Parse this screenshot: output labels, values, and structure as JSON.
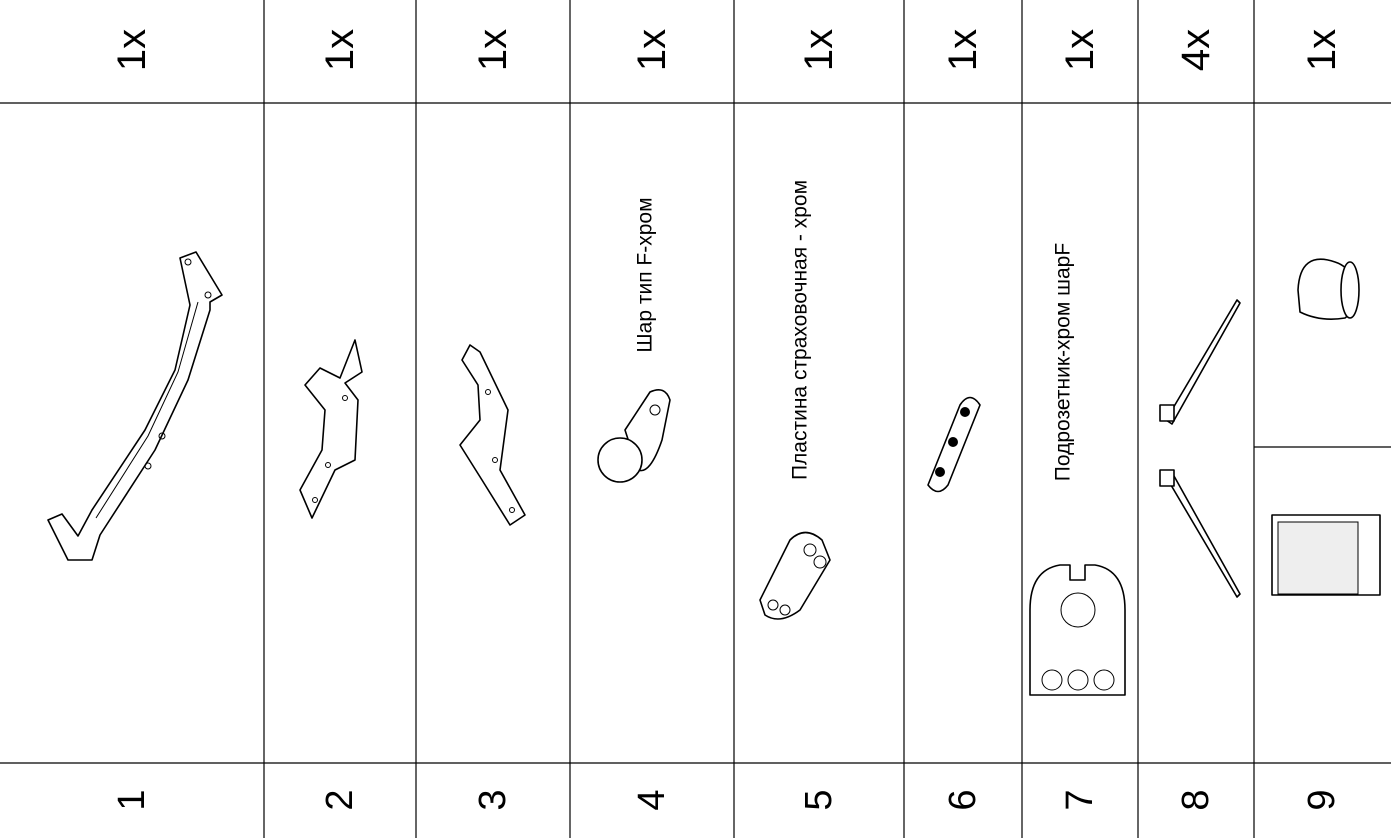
{
  "table": {
    "columns": [
      {
        "quantity": "1x",
        "number": "1"
      },
      {
        "quantity": "1x",
        "number": "2"
      },
      {
        "quantity": "1x",
        "number": "3"
      },
      {
        "quantity": "1x",
        "number": "4",
        "label": "Шар тип F-хром"
      },
      {
        "quantity": "1x",
        "number": "5",
        "label": "Пластина страховочная - хром"
      },
      {
        "quantity": "1x",
        "number": "6"
      },
      {
        "quantity": "1x",
        "number": "7",
        "label": "Подрозетник-хром шарF"
      },
      {
        "quantity": "4x",
        "number": "8"
      },
      {
        "quantity": "1x",
        "number": "9"
      }
    ]
  }
}
